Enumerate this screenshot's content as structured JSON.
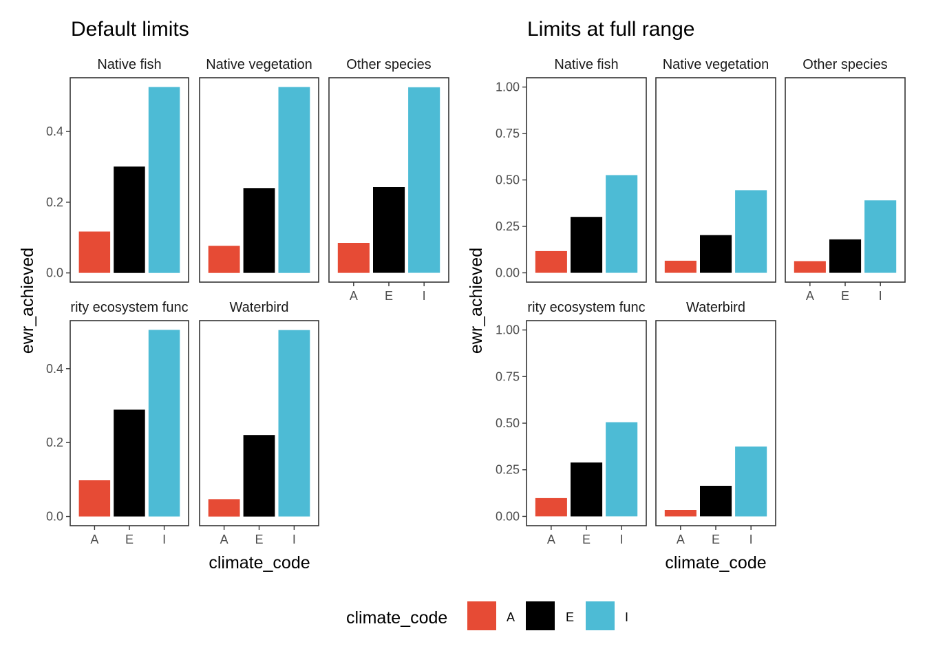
{
  "chart_data": [
    {
      "type": "bar",
      "title": "Default limits",
      "xlabel": "climate_code",
      "ylabel": "ewr_achieved",
      "categories": [
        "A",
        "E",
        "I"
      ],
      "colors": {
        "A": "#E64B35",
        "E": "#000000",
        "I": "#4DBBD5"
      },
      "scales": "free_y",
      "facets": [
        {
          "label": "Native fish",
          "values": [
            0.117,
            0.301,
            0.526
          ],
          "ylim": [
            -0.026,
            0.552
          ],
          "yticks": [
            0.0,
            0.2,
            0.4
          ],
          "ytick_labels": [
            "0.0",
            "0.2",
            "0.4"
          ]
        },
        {
          "label": "Native vegetation",
          "values": [
            0.065,
            0.203,
            0.445
          ],
          "ylim": [
            -0.022,
            0.467
          ],
          "yticks": [],
          "ytick_labels": []
        },
        {
          "label": "Other species",
          "values": [
            0.063,
            0.18,
            0.39
          ],
          "ylim": [
            -0.0195,
            0.41
          ],
          "yticks": [],
          "ytick_labels": []
        },
        {
          "label": "rity ecosystem func",
          "values": [
            0.098,
            0.289,
            0.505
          ],
          "ylim": [
            -0.025,
            0.53
          ],
          "yticks": [
            0.0,
            0.2,
            0.4
          ],
          "ytick_labels": [
            "0.0",
            "0.2",
            "0.4"
          ]
        },
        {
          "label": "Waterbird",
          "values": [
            0.035,
            0.164,
            0.375
          ],
          "ylim": [
            -0.0185,
            0.394
          ],
          "yticks": [],
          "ytick_labels": []
        }
      ]
    },
    {
      "type": "bar",
      "title": "Limits at full range",
      "xlabel": "climate_code",
      "ylabel": "ewr_achieved",
      "categories": [
        "A",
        "E",
        "I"
      ],
      "colors": {
        "A": "#E64B35",
        "E": "#000000",
        "I": "#4DBBD5"
      },
      "scales": "fixed",
      "facets": [
        {
          "label": "Native fish",
          "values": [
            0.117,
            0.301,
            0.526
          ],
          "ylim": [
            -0.05,
            1.05
          ],
          "yticks": [
            0.0,
            0.25,
            0.5,
            0.75,
            1.0
          ],
          "ytick_labels": [
            "0.00",
            "0.25",
            "0.50",
            "0.75",
            "1.00"
          ]
        },
        {
          "label": "Native vegetation",
          "values": [
            0.065,
            0.203,
            0.445
          ],
          "ylim": [
            -0.05,
            1.05
          ],
          "yticks": [],
          "ytick_labels": []
        },
        {
          "label": "Other species",
          "values": [
            0.063,
            0.18,
            0.39
          ],
          "ylim": [
            -0.05,
            1.05
          ],
          "yticks": [],
          "ytick_labels": []
        },
        {
          "label": "rity ecosystem func",
          "values": [
            0.098,
            0.289,
            0.505
          ],
          "ylim": [
            -0.05,
            1.05
          ],
          "yticks": [
            0.0,
            0.25,
            0.5,
            0.75,
            1.0
          ],
          "ytick_labels": [
            "0.00",
            "0.25",
            "0.50",
            "0.75",
            "1.00"
          ]
        },
        {
          "label": "Waterbird",
          "values": [
            0.035,
            0.164,
            0.375
          ],
          "ylim": [
            -0.05,
            1.05
          ],
          "yticks": [],
          "ytick_labels": []
        }
      ]
    }
  ],
  "legend": {
    "title": "climate_code",
    "position": "bottom",
    "items": [
      {
        "label": "A",
        "color": "#E64B35"
      },
      {
        "label": "E",
        "color": "#000000"
      },
      {
        "label": "I",
        "color": "#4DBBD5"
      }
    ]
  }
}
